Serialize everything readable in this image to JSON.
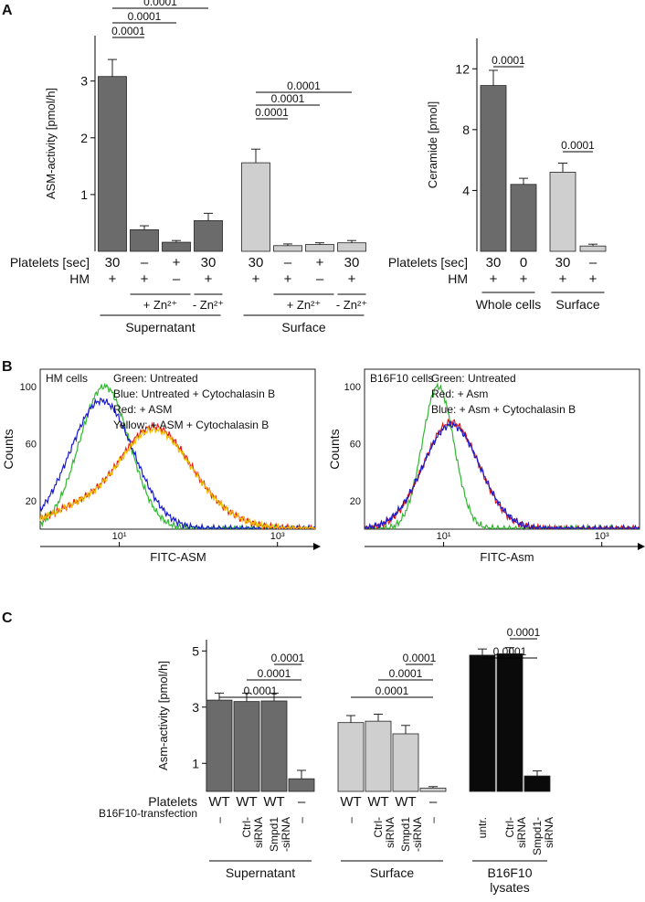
{
  "panel_labels": {
    "a": "A",
    "b": "B",
    "c": "C"
  },
  "colors": {
    "dark": "#6b6b6b",
    "light": "#cfcfcf",
    "black": "#0a0a0a",
    "green": "#2fb82f",
    "blue": "#1a1acc",
    "red": "#e01a1a",
    "yellow": "#f0c000",
    "frame": "#222222"
  },
  "chart_data": [
    {
      "id": "A1",
      "type": "bar",
      "ylabel": "ASM-activity [pmol/h]",
      "ylim": [
        0,
        3.8
      ],
      "yticks": [
        1,
        2,
        3
      ],
      "ytick_labels": [
        "1",
        "2",
        "3"
      ],
      "row_labels": {
        "platelets": "Platelets [sec]",
        "hm": "HM"
      },
      "bars": [
        {
          "value": 3.08,
          "err": 0.3,
          "color": "dark",
          "platelets": "30",
          "hm": "+"
        },
        {
          "value": 0.38,
          "err": 0.07,
          "color": "dark",
          "platelets": "–",
          "hm": "+"
        },
        {
          "value": 0.16,
          "err": 0.03,
          "color": "dark",
          "platelets": "+",
          "hm": "–"
        },
        {
          "value": 0.54,
          "err": 0.13,
          "color": "dark",
          "platelets": "30",
          "hm": "+"
        },
        {
          "value": 1.56,
          "err": 0.24,
          "color": "light",
          "platelets": "30",
          "hm": "+"
        },
        {
          "value": 0.1,
          "err": 0.03,
          "color": "light",
          "platelets": "–",
          "hm": "+"
        },
        {
          "value": 0.12,
          "err": 0.03,
          "color": "light",
          "platelets": "+",
          "hm": "–"
        },
        {
          "value": 0.15,
          "err": 0.04,
          "color": "light",
          "platelets": "30",
          "hm": "+"
        }
      ],
      "significance": [
        {
          "from": 0,
          "to": 1,
          "label": "0.0001"
        },
        {
          "from": 0,
          "to": 2,
          "label": "0.0001"
        },
        {
          "from": 0,
          "to": 3,
          "label": "0.0001"
        },
        {
          "from": 4,
          "to": 5,
          "label": "0.0001"
        },
        {
          "from": 4,
          "to": 6,
          "label": "0.0001"
        },
        {
          "from": 4,
          "to": 7,
          "label": "0.0001"
        }
      ],
      "zn_groups": [
        {
          "from": 1,
          "to": 2,
          "label": "+ Zn²⁺"
        },
        {
          "from": 3,
          "to": 3,
          "label": "- Zn²⁺"
        },
        {
          "from": 5,
          "to": 6,
          "label": "+ Zn²⁺"
        },
        {
          "from": 7,
          "to": 7,
          "label": "- Zn²⁺"
        }
      ],
      "groups": [
        {
          "from": 0,
          "to": 3,
          "label": "Supernatant"
        },
        {
          "from": 4,
          "to": 7,
          "label": "Surface"
        }
      ]
    },
    {
      "id": "A2",
      "type": "bar",
      "ylabel": "Ceramide [pmol]",
      "ylim": [
        0,
        14
      ],
      "yticks": [
        4,
        8,
        12
      ],
      "ytick_labels": [
        "4",
        "8",
        "12"
      ],
      "row_labels": {
        "platelets": "Platelets [sec]",
        "hm": "HM"
      },
      "bars": [
        {
          "value": 10.9,
          "err": 1.0,
          "color": "dark",
          "platelets": "30",
          "hm": "+"
        },
        {
          "value": 4.4,
          "err": 0.4,
          "color": "dark",
          "platelets": "0",
          "hm": "+"
        },
        {
          "value": 5.2,
          "err": 0.6,
          "color": "light",
          "platelets": "30",
          "hm": "+"
        },
        {
          "value": 0.35,
          "err": 0.12,
          "color": "light",
          "platelets": "–",
          "hm": "+"
        }
      ],
      "significance": [
        {
          "from": 0,
          "to": 1,
          "label": "0.0001"
        },
        {
          "from": 2,
          "to": 3,
          "label": "0.0001"
        }
      ],
      "groups": [
        {
          "from": 0,
          "to": 1,
          "label": "Whole cells"
        },
        {
          "from": 2,
          "to": 3,
          "label": "Surface"
        }
      ]
    },
    {
      "id": "B1",
      "type": "line",
      "xlabel": "FITC-ASM",
      "ylabel": "Counts",
      "xlog": true,
      "xlim": [
        1,
        3000
      ],
      "ylim": [
        0,
        112
      ],
      "yticks": [
        20,
        60,
        100
      ],
      "ytick_labels": [
        "20",
        "60",
        "100"
      ],
      "xticks": [
        10,
        1000
      ],
      "xtick_labels": [
        "10¹",
        "10³"
      ],
      "legend_title": "HM cells",
      "legend": [
        "Green: Untreated",
        "Blue: Untreated + Cytochalasin B",
        "Red: + ASM",
        "Yellow: + ASM + Cytochalasin B"
      ],
      "series": [
        {
          "name": "Green",
          "color": "green",
          "peaks": [
            [
              6.5,
              100,
              0.32
            ]
          ]
        },
        {
          "name": "Blue",
          "color": "blue",
          "peaks": [
            [
              6,
              90,
              0.4
            ]
          ]
        },
        {
          "name": "Red",
          "color": "red",
          "peaks": [
            [
              3,
              14,
              0.4
            ],
            [
              25,
              64,
              0.42
            ],
            [
              90,
              14,
              0.45
            ]
          ]
        },
        {
          "name": "Yellow",
          "color": "yellow",
          "peaks": [
            [
              3,
              14,
              0.4
            ],
            [
              25,
              62,
              0.42
            ],
            [
              90,
              14,
              0.45
            ]
          ]
        }
      ]
    },
    {
      "id": "B2",
      "type": "line",
      "xlabel": "FITC-Asm",
      "ylabel": "Counts",
      "xlog": true,
      "xlim": [
        1,
        3000
      ],
      "ylim": [
        0,
        112
      ],
      "yticks": [
        20,
        60,
        100
      ],
      "ytick_labels": [
        "20",
        "60",
        "100"
      ],
      "xticks": [
        10,
        1000
      ],
      "xtick_labels": [
        "10¹",
        "10³"
      ],
      "legend_title": "B16F10 cells",
      "legend": [
        "Green: Untreated",
        "Red: + Asm",
        "Blue: + Asm + Cytochalasin B"
      ],
      "series": [
        {
          "name": "Green",
          "color": "green",
          "peaks": [
            [
              8.5,
              100,
              0.2
            ]
          ]
        },
        {
          "name": "Red",
          "color": "red",
          "peaks": [
            [
              12.5,
              75,
              0.35
            ]
          ]
        },
        {
          "name": "Blue",
          "color": "blue",
          "peaks": [
            [
              12.5,
              73,
              0.36
            ]
          ]
        }
      ]
    },
    {
      "id": "C",
      "type": "bar",
      "ylabel": "Asm-activity [pmol/h]",
      "ylim": [
        0,
        5.4
      ],
      "yticks": [
        1,
        3,
        5
      ],
      "ytick_labels": [
        "1",
        "3",
        "5"
      ],
      "row_labels": {
        "platelets": "Platelets",
        "transfection": "B16F10-transfection"
      },
      "bars": [
        {
          "value": 3.25,
          "err": 0.25,
          "color": "dark",
          "platelets": "WT",
          "transfection": "–"
        },
        {
          "value": 3.2,
          "err": 0.3,
          "color": "dark",
          "platelets": "WT",
          "transfection": "Ctrl-\nsiRNA"
        },
        {
          "value": 3.22,
          "err": 0.28,
          "color": "dark",
          "platelets": "WT",
          "transfection": "Smpd1\n-siRNA"
        },
        {
          "value": 0.45,
          "err": 0.3,
          "color": "dark",
          "platelets": "–",
          "transfection": "–"
        },
        {
          "value": 2.45,
          "err": 0.25,
          "color": "light",
          "platelets": "WT",
          "transfection": "–"
        },
        {
          "value": 2.5,
          "err": 0.25,
          "color": "light",
          "platelets": "WT",
          "transfection": "Ctrl-\nsiRNA"
        },
        {
          "value": 2.05,
          "err": 0.3,
          "color": "light",
          "platelets": "WT",
          "transfection": "Smpd1\n-siRNA"
        },
        {
          "value": 0.12,
          "err": 0.05,
          "color": "light",
          "platelets": "–",
          "transfection": "–"
        },
        {
          "value": 4.85,
          "err": 0.22,
          "color": "black",
          "platelets": "",
          "transfection": "untr."
        },
        {
          "value": 4.9,
          "err": 0.22,
          "color": "black",
          "platelets": "",
          "transfection": "Ctrl-\nsiRNA"
        },
        {
          "value": 0.55,
          "err": 0.18,
          "color": "black",
          "platelets": "",
          "transfection": "Smpd1-\nsiRNA"
        }
      ],
      "significance": [
        {
          "from": 0,
          "to": 3,
          "label": "0.0001"
        },
        {
          "from": 1,
          "to": 3,
          "label": "0.0001"
        },
        {
          "from": 2,
          "to": 3,
          "label": "0.0001"
        },
        {
          "from": 4,
          "to": 7,
          "label": "0.0001"
        },
        {
          "from": 5,
          "to": 7,
          "label": "0.0001"
        },
        {
          "from": 6,
          "to": 7,
          "label": "0.0001"
        },
        {
          "from": 8,
          "to": 10,
          "label": "0.0001"
        },
        {
          "from": 9,
          "to": 10,
          "label": "0.0001"
        }
      ],
      "groups": [
        {
          "from": 0,
          "to": 3,
          "label": "Supernatant"
        },
        {
          "from": 4,
          "to": 7,
          "label": "Surface"
        },
        {
          "from": 8,
          "to": 10,
          "label": "B16F10\nlysates"
        }
      ]
    }
  ]
}
